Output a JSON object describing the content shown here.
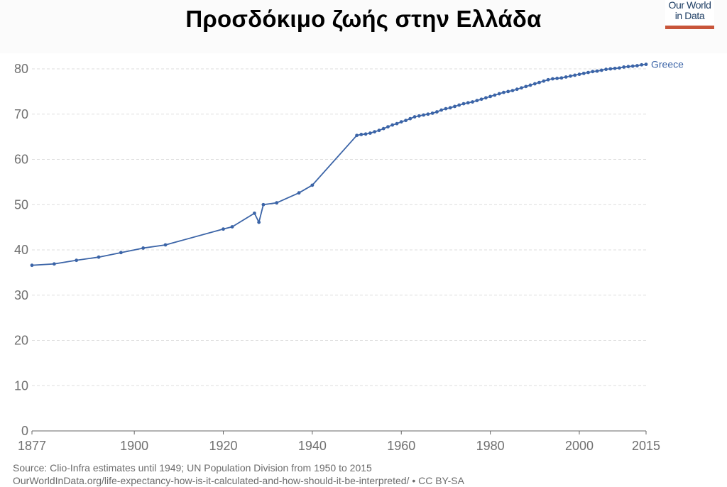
{
  "title": "Προσδόκιμο ζωής στην Ελλάδα",
  "logo": {
    "line1": "Our World",
    "line2": "in Data"
  },
  "source": {
    "line1": "Source: Clio-Infra estimates until 1949; UN Population Division from 1950 to 2015",
    "line2": "OurWorldInData.org/life-expectancy-how-is-it-calculated-and-how-should-it-be-interpreted/ • CC BY-SA"
  },
  "colors": {
    "series": "#3b64a7",
    "grid": "#dddddd",
    "axis": "#666666",
    "tick_text": "#707070"
  },
  "chart_data": {
    "type": "line",
    "title": "Προσδόκιμο ζωής στην Ελλάδα",
    "xlabel": "",
    "ylabel": "",
    "xlim": [
      1877,
      2015
    ],
    "ylim": [
      0,
      80
    ],
    "grid": true,
    "x_ticks": [
      "1877",
      "1900",
      "1920",
      "1940",
      "1960",
      "1980",
      "2000",
      "2015"
    ],
    "y_ticks": [
      "0",
      "10",
      "20",
      "30",
      "40",
      "50",
      "60",
      "70",
      "80"
    ],
    "series": [
      {
        "name": "Greece",
        "points": [
          [
            1877,
            36.6
          ],
          [
            1882,
            36.9
          ],
          [
            1887,
            37.7
          ],
          [
            1892,
            38.4
          ],
          [
            1897,
            39.4
          ],
          [
            1902,
            40.4
          ],
          [
            1907,
            41.1
          ],
          [
            1920,
            44.6
          ],
          [
            1922,
            45.1
          ],
          [
            1927,
            48.1
          ],
          [
            1928,
            46.1
          ],
          [
            1929,
            50.0
          ],
          [
            1932,
            50.4
          ],
          [
            1937,
            52.6
          ],
          [
            1940,
            54.3
          ],
          [
            1950,
            65.3
          ],
          [
            1951,
            65.5
          ],
          [
            1952,
            65.6
          ],
          [
            1953,
            65.8
          ],
          [
            1954,
            66.1
          ],
          [
            1955,
            66.4
          ],
          [
            1956,
            66.8
          ],
          [
            1957,
            67.2
          ],
          [
            1958,
            67.6
          ],
          [
            1959,
            67.9
          ],
          [
            1960,
            68.3
          ],
          [
            1961,
            68.6
          ],
          [
            1962,
            69.0
          ],
          [
            1963,
            69.4
          ],
          [
            1964,
            69.6
          ],
          [
            1965,
            69.8
          ],
          [
            1966,
            70.0
          ],
          [
            1967,
            70.2
          ],
          [
            1968,
            70.5
          ],
          [
            1969,
            70.9
          ],
          [
            1970,
            71.2
          ],
          [
            1971,
            71.4
          ],
          [
            1972,
            71.7
          ],
          [
            1973,
            72.0
          ],
          [
            1974,
            72.3
          ],
          [
            1975,
            72.5
          ],
          [
            1976,
            72.7
          ],
          [
            1977,
            73.0
          ],
          [
            1978,
            73.3
          ],
          [
            1979,
            73.6
          ],
          [
            1980,
            73.9
          ],
          [
            1981,
            74.2
          ],
          [
            1982,
            74.5
          ],
          [
            1983,
            74.8
          ],
          [
            1984,
            75.0
          ],
          [
            1985,
            75.2
          ],
          [
            1986,
            75.5
          ],
          [
            1987,
            75.8
          ],
          [
            1988,
            76.1
          ],
          [
            1989,
            76.4
          ],
          [
            1990,
            76.7
          ],
          [
            1991,
            77.0
          ],
          [
            1992,
            77.3
          ],
          [
            1993,
            77.6
          ],
          [
            1994,
            77.8
          ],
          [
            1995,
            77.9
          ],
          [
            1996,
            78.0
          ],
          [
            1997,
            78.2
          ],
          [
            1998,
            78.4
          ],
          [
            1999,
            78.6
          ],
          [
            2000,
            78.8
          ],
          [
            2001,
            79.0
          ],
          [
            2002,
            79.2
          ],
          [
            2003,
            79.4
          ],
          [
            2004,
            79.5
          ],
          [
            2005,
            79.7
          ],
          [
            2006,
            79.9
          ],
          [
            2007,
            80.0
          ],
          [
            2008,
            80.1
          ],
          [
            2009,
            80.2
          ],
          [
            2010,
            80.4
          ],
          [
            2011,
            80.5
          ],
          [
            2012,
            80.6
          ],
          [
            2013,
            80.7
          ],
          [
            2014,
            80.9
          ],
          [
            2015,
            81.0
          ]
        ]
      }
    ]
  }
}
